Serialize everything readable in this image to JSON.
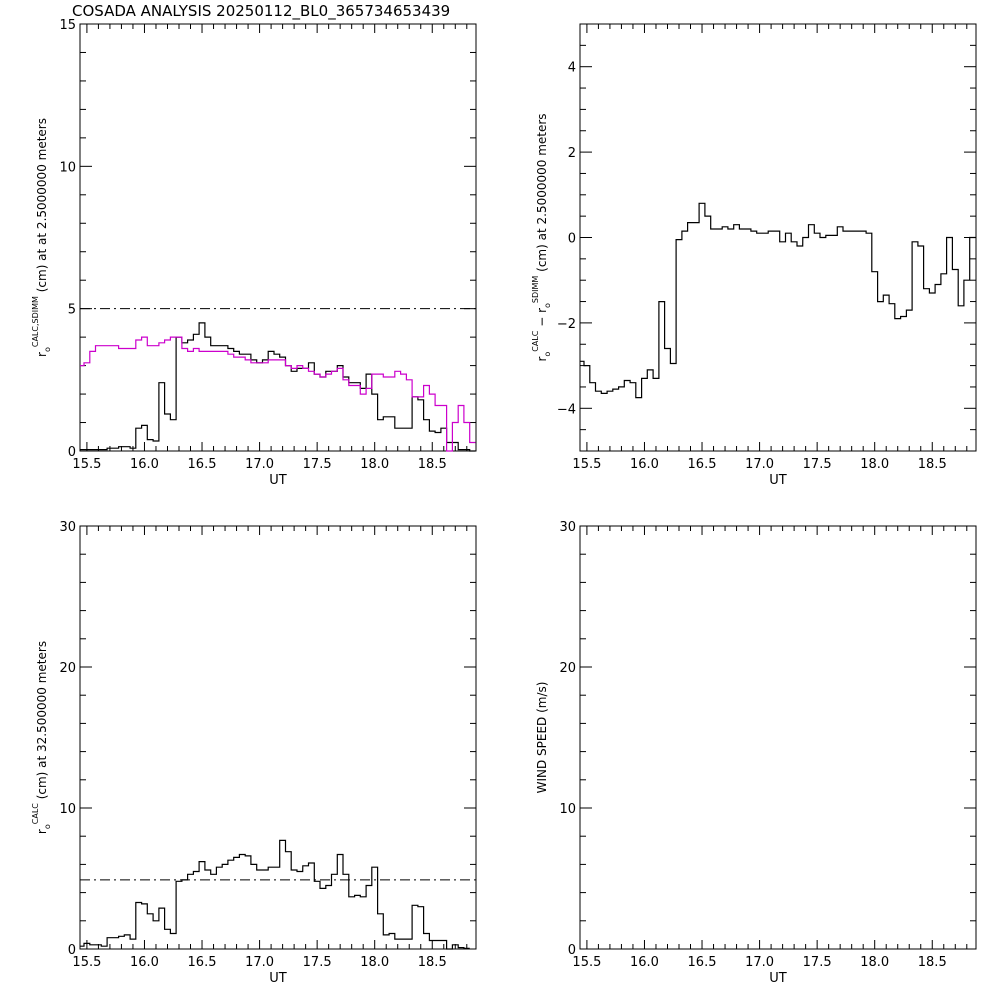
{
  "title": "COSADA ANALYSIS 20250112_BL0_365734653439",
  "chart_data": [
    {
      "type": "line",
      "id": "p1",
      "xlabel": "UT",
      "ylabel": {
        "base": "r",
        "sub": "o",
        "sup": "CALC,SDIMM",
        "rest": " (cm) at  at 2.5000000 meters"
      },
      "xlim": [
        15.44,
        18.88
      ],
      "ylim": [
        0,
        15
      ],
      "xticks": [
        15.5,
        16.0,
        16.5,
        17.0,
        17.5,
        18.0,
        18.5
      ],
      "xtick_labels": [
        "15.5",
        "16.0",
        "16.5",
        "17.0",
        "17.5",
        "18.0",
        "18.5"
      ],
      "yticks": [
        0,
        5,
        10,
        15
      ],
      "ytick_labels": [
        "0",
        "5",
        "10",
        "15"
      ],
      "yminor": 1,
      "reference_line": 5,
      "x_start": 15.45,
      "x_step": 0.05,
      "series": [
        {
          "name": "CALC",
          "color": "#000000",
          "values": [
            0.05,
            0.05,
            0.05,
            0.05,
            0.05,
            0.1,
            0.1,
            0.15,
            0.15,
            0.1,
            0.8,
            0.9,
            0.4,
            0.35,
            2.4,
            1.3,
            1.1,
            4.0,
            3.8,
            3.9,
            4.1,
            4.5,
            4.0,
            3.7,
            3.7,
            3.7,
            3.6,
            3.5,
            3.4,
            3.4,
            3.2,
            3.1,
            3.2,
            3.5,
            3.4,
            3.3,
            3.0,
            2.8,
            2.9,
            2.9,
            3.1,
            2.7,
            2.6,
            2.8,
            2.8,
            3.0,
            2.6,
            2.4,
            2.4,
            2.2,
            2.7,
            2.0,
            1.1,
            1.2,
            1.2,
            0.8,
            0.8,
            0.8,
            1.9,
            1.8,
            1.1,
            0.7,
            0.65,
            0.8,
            0.3,
            0.3,
            0.05,
            0.05,
            0.0
          ]
        },
        {
          "name": "SDIMM",
          "color": "#cc00cc",
          "values": [
            3.0,
            3.1,
            3.5,
            3.7,
            3.7,
            3.7,
            3.7,
            3.6,
            3.6,
            3.6,
            3.9,
            4.0,
            3.7,
            3.7,
            3.8,
            3.9,
            4.0,
            4.0,
            3.6,
            3.5,
            3.6,
            3.5,
            3.5,
            3.5,
            3.5,
            3.5,
            3.4,
            3.3,
            3.3,
            3.2,
            3.1,
            3.1,
            3.1,
            3.2,
            3.2,
            3.2,
            3.0,
            2.9,
            3.0,
            2.9,
            2.8,
            2.7,
            2.6,
            2.7,
            2.8,
            2.9,
            2.5,
            2.3,
            2.3,
            2.0,
            2.2,
            2.7,
            2.7,
            2.6,
            2.6,
            2.8,
            2.7,
            2.5,
            1.9,
            1.9,
            2.3,
            2.0,
            1.6,
            1.6,
            0.0,
            1.0,
            1.6,
            1.0,
            0.3
          ]
        }
      ]
    },
    {
      "type": "line",
      "id": "p2",
      "xlabel": "UT",
      "ylabel": {
        "base": "r",
        "sub": "o",
        "sup": "CALC",
        "rest": "  −  ",
        "base2": "r",
        "sub2": "o",
        "sup2": "SDIMM",
        "rest2": " (cm) at 2.5000000 meters"
      },
      "xlim": [
        15.44,
        18.88
      ],
      "ylim": [
        -5,
        5
      ],
      "xticks": [
        15.5,
        16.0,
        16.5,
        17.0,
        17.5,
        18.0,
        18.5
      ],
      "xtick_labels": [
        "15.5",
        "16.0",
        "16.5",
        "17.0",
        "17.5",
        "18.0",
        "18.5"
      ],
      "yticks": [
        -4,
        -2,
        0,
        2,
        4
      ],
      "ytick_labels": [
        "−4",
        "−2",
        "0",
        "2",
        "4"
      ],
      "yminor": 0.5,
      "x_start": 15.45,
      "x_step": 0.05,
      "series": [
        {
          "name": "CALC - SDIMM",
          "color": "#000000",
          "values": [
            -2.9,
            -3.0,
            -3.4,
            -3.6,
            -3.65,
            -3.6,
            -3.55,
            -3.5,
            -3.35,
            -3.4,
            -3.75,
            -3.3,
            -3.1,
            -3.3,
            -1.5,
            -2.6,
            -2.95,
            -0.05,
            0.15,
            0.35,
            0.35,
            0.8,
            0.5,
            0.2,
            0.2,
            0.25,
            0.2,
            0.3,
            0.2,
            0.2,
            0.15,
            0.1,
            0.1,
            0.15,
            0.15,
            -0.1,
            0.1,
            -0.1,
            -0.2,
            0.0,
            0.3,
            0.1,
            0.0,
            0.05,
            0.05,
            0.25,
            0.15,
            0.15,
            0.15,
            0.15,
            0.1,
            -0.8,
            -1.5,
            -1.35,
            -1.55,
            -1.9,
            -1.85,
            -1.7,
            -0.1,
            -0.2,
            -1.2,
            -1.3,
            -1.1,
            -0.85,
            0.0,
            -0.75,
            -1.6,
            -1.0,
            0.0
          ]
        }
      ]
    },
    {
      "type": "line",
      "id": "p3",
      "xlabel": "UT",
      "ylabel": {
        "base": "r",
        "sub": "o",
        "sup": "CALC",
        "rest": " (cm) at 32.500000 meters"
      },
      "xlim": [
        15.44,
        18.88
      ],
      "ylim": [
        0,
        30
      ],
      "xticks": [
        15.5,
        16.0,
        16.5,
        17.0,
        17.5,
        18.0,
        18.5
      ],
      "xtick_labels": [
        "15.5",
        "16.0",
        "16.5",
        "17.0",
        "17.5",
        "18.0",
        "18.5"
      ],
      "yticks": [
        0,
        10,
        20,
        30
      ],
      "ytick_labels": [
        "0",
        "10",
        "20",
        "30"
      ],
      "yminor": 2,
      "reference_line": 4.9,
      "x_start": 15.45,
      "x_step": 0.05,
      "series": [
        {
          "name": "CALC",
          "color": "#000000",
          "values": [
            0.2,
            0.4,
            0.3,
            0.3,
            0.2,
            0.8,
            0.8,
            0.9,
            1.0,
            0.7,
            3.3,
            3.2,
            2.5,
            2.0,
            2.9,
            1.4,
            1.1,
            4.8,
            4.9,
            5.3,
            5.5,
            6.2,
            5.6,
            5.3,
            5.8,
            6.0,
            6.3,
            6.5,
            6.7,
            6.6,
            6.0,
            5.6,
            5.6,
            5.8,
            5.8,
            7.7,
            6.9,
            5.6,
            5.5,
            5.9,
            6.1,
            4.8,
            4.3,
            4.5,
            5.3,
            6.7,
            5.3,
            3.7,
            3.8,
            3.7,
            4.5,
            5.8,
            2.5,
            1.0,
            1.1,
            0.7,
            0.7,
            0.7,
            3.1,
            3.0,
            1.1,
            0.6,
            0.6,
            0.6,
            0.0,
            0.3,
            0.1,
            0.05
          ]
        }
      ]
    },
    {
      "type": "line",
      "id": "p4",
      "xlabel": "UT",
      "ylabel": {
        "base": "WIND SPEED (m/s)"
      },
      "xlim": [
        15.44,
        18.88
      ],
      "ylim": [
        0,
        30
      ],
      "xticks": [
        15.5,
        16.0,
        16.5,
        17.0,
        17.5,
        18.0,
        18.5
      ],
      "xtick_labels": [
        "15.5",
        "16.0",
        "16.5",
        "17.0",
        "17.5",
        "18.0",
        "18.5"
      ],
      "yticks": [
        0,
        10,
        20,
        30
      ],
      "ytick_labels": [
        "0",
        "10",
        "20",
        "30"
      ],
      "yminor": 2,
      "series": []
    }
  ]
}
